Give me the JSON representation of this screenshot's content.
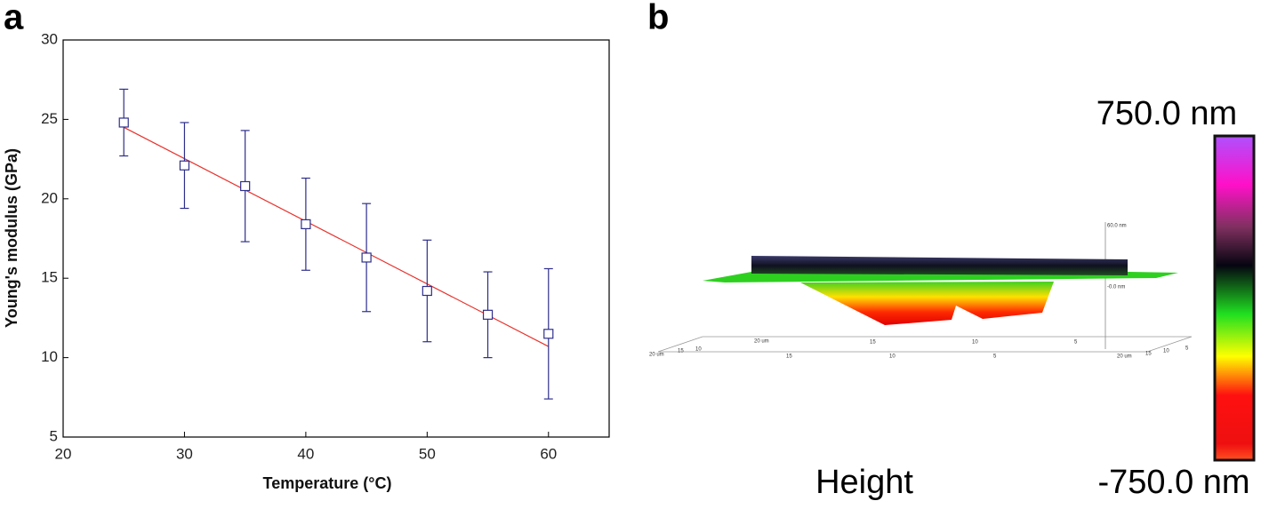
{
  "chart_data": {
    "type": "scatter",
    "panel_label": "a",
    "x_label": "Temperature (°C)",
    "y_label": "Young's modulus (GPa)",
    "xlim": [
      20,
      65
    ],
    "xticks": [
      20,
      30,
      40,
      50,
      60
    ],
    "ylim": [
      5,
      30
    ],
    "yticks": [
      5,
      10,
      15,
      20,
      25,
      30
    ],
    "series": [
      {
        "x": [
          25,
          30,
          35,
          40,
          45,
          50,
          55,
          60
        ],
        "values": [
          24.8,
          22.1,
          20.8,
          18.4,
          16.3,
          14.2,
          12.7,
          11.5
        ],
        "errors": [
          2.1,
          2.7,
          3.5,
          2.9,
          3.4,
          3.2,
          2.7,
          4.1
        ],
        "color": "#2e2e8c"
      },
      {
        "type": "line",
        "x": [
          25,
          60
        ],
        "values": [
          24.5,
          10.7
        ],
        "color": "#e8322c"
      }
    ]
  },
  "afm_panel": {
    "panel_label": "b",
    "scale_max": "750.0 nm",
    "scale_min": "-750.0 nm",
    "caption": "Height",
    "axis_labels": [
      "20 um",
      "15",
      "10",
      "20 um",
      "15",
      "10",
      "5",
      "15",
      "10",
      "5",
      "20 um",
      "15",
      "10",
      "5",
      "60.0 nm",
      "-0.0 nm"
    ]
  }
}
